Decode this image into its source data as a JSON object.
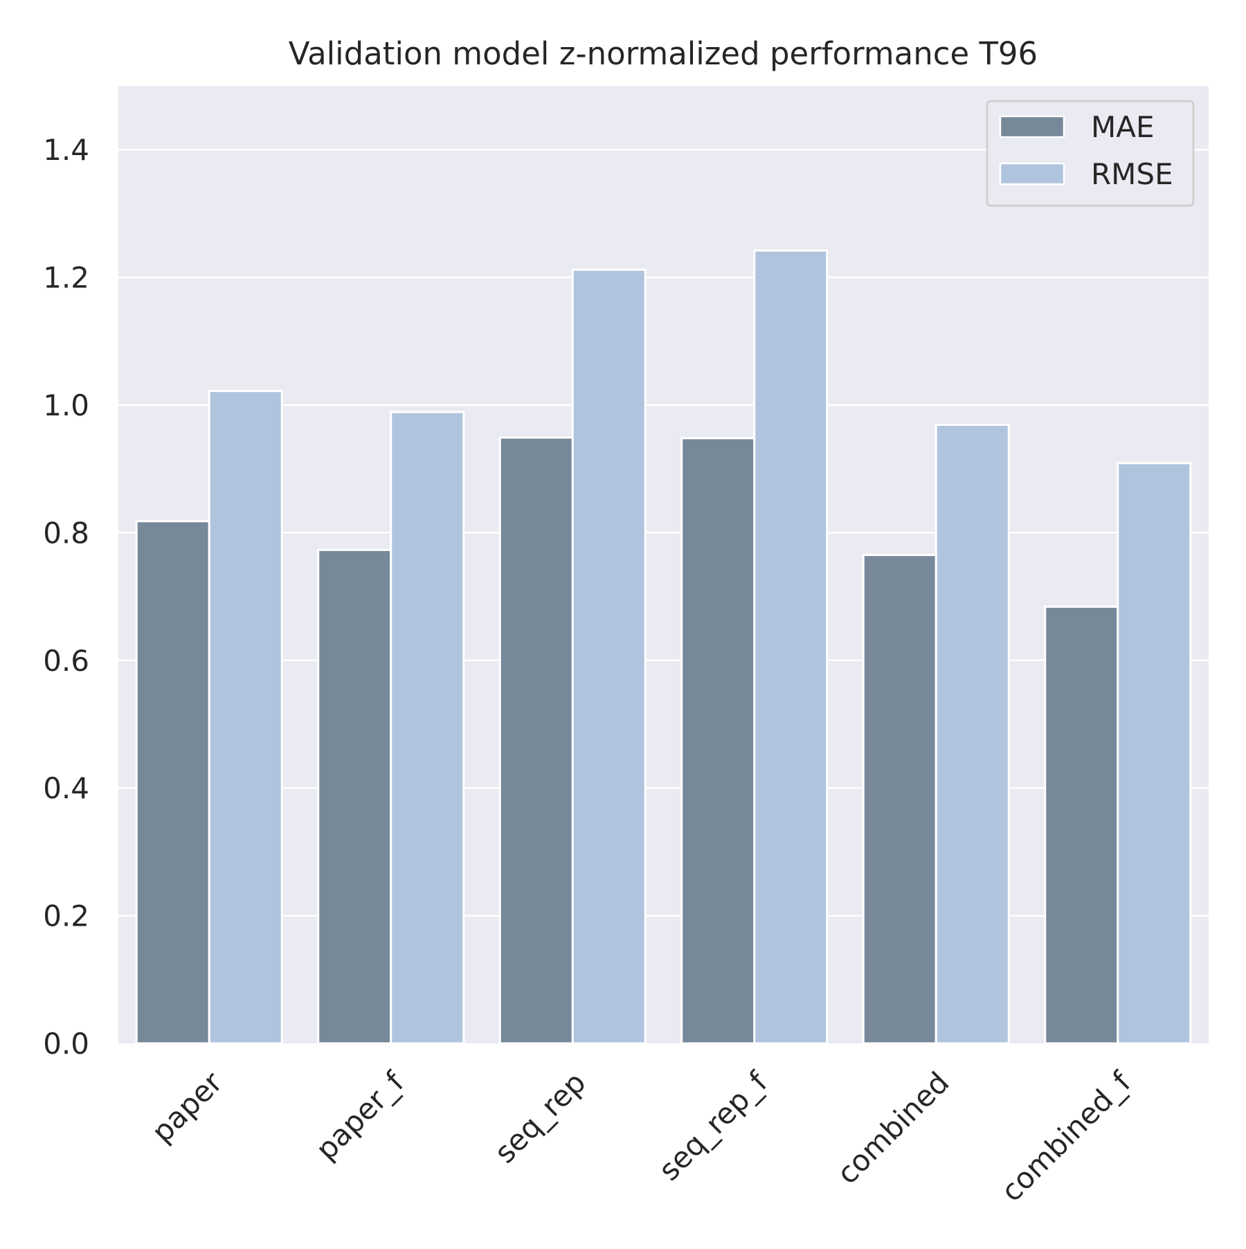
{
  "chart_data": {
    "type": "bar",
    "title": "Validation model z-normalized performance T96",
    "xlabel": "",
    "ylabel": "",
    "categories": [
      "paper",
      "paper_f",
      "seq_rep",
      "seq_rep_f",
      "combined",
      "combined_f"
    ],
    "series": [
      {
        "name": "MAE",
        "color": "#778899",
        "values": [
          0.818,
          0.773,
          0.949,
          0.948,
          0.765,
          0.684
        ]
      },
      {
        "name": "RMSE",
        "color": "#b0c4de",
        "values": [
          1.022,
          0.989,
          1.212,
          1.242,
          0.969,
          0.909
        ]
      }
    ],
    "ylim": [
      0,
      1.5
    ],
    "yticks": [
      "0.0",
      "0.2",
      "0.4",
      "0.6",
      "0.8",
      "1.0",
      "1.2",
      "1.4"
    ],
    "ytick_values": [
      0,
      0.2,
      0.4,
      0.6,
      0.8,
      1.0,
      1.2,
      1.4
    ],
    "grid": true,
    "legend_position": "top-right",
    "background_color": "#eaeaf2",
    "grid_color": "#ffffff"
  }
}
